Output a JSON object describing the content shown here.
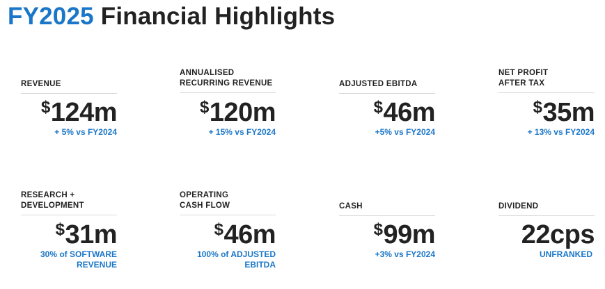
{
  "title": {
    "year": "FY2025",
    "rest": "Financial Highlights"
  },
  "metrics": [
    {
      "label_lines": [
        "REVENUE"
      ],
      "currency": "$",
      "value": "124m",
      "note_lines": [
        "+ 5% vs FY2024"
      ]
    },
    {
      "label_lines": [
        "ANNUALISED",
        "RECURRING REVENUE"
      ],
      "currency": "$",
      "value": "120m",
      "note_lines": [
        "+ 15% vs FY2024"
      ]
    },
    {
      "label_lines": [
        "ADJUSTED EBITDA"
      ],
      "currency": "$",
      "value": "46m",
      "note_lines": [
        "+5% vs FY2024"
      ]
    },
    {
      "label_lines": [
        "NET PROFIT",
        "AFTER TAX"
      ],
      "currency": "$",
      "value": "35m",
      "note_lines": [
        "+ 13% vs FY2024"
      ]
    },
    {
      "label_lines": [
        "RESEARCH +",
        "DEVELOPMENT"
      ],
      "currency": "$",
      "value": "31m",
      "note_lines": [
        "30% of SOFTWARE",
        "REVENUE"
      ]
    },
    {
      "label_lines": [
        "OPERATING",
        "CASH FLOW"
      ],
      "currency": "$",
      "value": "46m",
      "note_lines": [
        "100% of ADJUSTED",
        "EBITDA"
      ]
    },
    {
      "label_lines": [
        "CASH"
      ],
      "currency": "$",
      "value": "99m",
      "note_lines": [
        "+3% vs FY2024"
      ]
    },
    {
      "label_lines": [
        "DIVIDEND"
      ],
      "currency": "",
      "value": "22cps",
      "note_lines": [
        "UNFRANKED"
      ]
    }
  ],
  "colors": {
    "accent": "#1a76c8",
    "text": "#222222",
    "divider": "#d9d9d9"
  }
}
